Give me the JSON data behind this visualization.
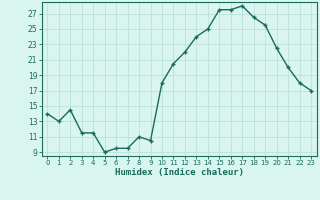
{
  "title": "",
  "xlabel": "Humidex (Indice chaleur)",
  "x": [
    0,
    1,
    2,
    3,
    4,
    5,
    6,
    7,
    8,
    9,
    10,
    11,
    12,
    13,
    14,
    15,
    16,
    17,
    18,
    19,
    20,
    21,
    22,
    23
  ],
  "y": [
    14,
    13,
    14.5,
    11.5,
    11.5,
    9,
    9.5,
    9.5,
    11,
    10.5,
    18,
    20.5,
    22,
    24,
    25,
    27.5,
    27.5,
    28,
    26.5,
    25.5,
    22.5,
    20,
    18,
    17
  ],
  "line_color": "#1a6b5a",
  "bg_color": "#d8f5f0",
  "grid_color": "#b8ddd6",
  "xlim": [
    -0.5,
    23.5
  ],
  "ylim": [
    8.5,
    28.5
  ],
  "yticks": [
    9,
    11,
    13,
    15,
    17,
    19,
    21,
    23,
    25,
    27
  ],
  "xticks": [
    0,
    1,
    2,
    3,
    4,
    5,
    6,
    7,
    8,
    9,
    10,
    11,
    12,
    13,
    14,
    15,
    16,
    17,
    18,
    19,
    20,
    21,
    22,
    23
  ]
}
